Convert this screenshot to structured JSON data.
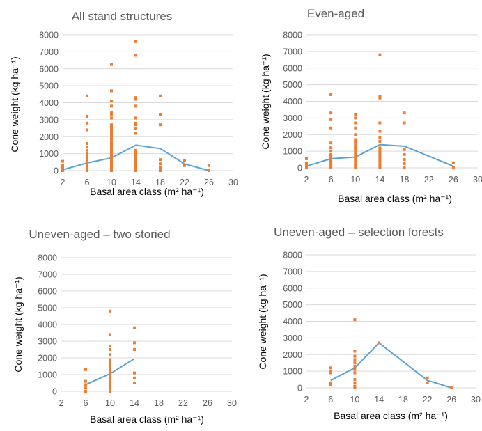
{
  "chart_data": [
    {
      "type": "scatter",
      "title": "All stand structures",
      "xlabel": "Basal area class (m² ha⁻¹)",
      "ylabel": "Cone weight (kg ha⁻¹)",
      "xlim": [
        2,
        30
      ],
      "ylim": [
        0,
        8000
      ],
      "xticks": [
        "2",
        "6",
        "10",
        "14",
        "18",
        "22",
        "26",
        "30"
      ],
      "yticks": [
        "0",
        "1000",
        "2000",
        "3000",
        "4000",
        "5000",
        "6000",
        "7000",
        "8000"
      ],
      "grid": "horizontal",
      "series": [
        {
          "kind": "points",
          "color": "#ed7d31",
          "points": [
            [
              2,
              0
            ],
            [
              2,
              100
            ],
            [
              2,
              200
            ],
            [
              2,
              300
            ],
            [
              2,
              550
            ],
            [
              6,
              0
            ],
            [
              6,
              100
            ],
            [
              6,
              200
            ],
            [
              6,
              300
            ],
            [
              6,
              400
            ],
            [
              6,
              500
            ],
            [
              6,
              600
            ],
            [
              6,
              700
            ],
            [
              6,
              800
            ],
            [
              6,
              900
            ],
            [
              6,
              1000
            ],
            [
              6,
              1200
            ],
            [
              6,
              1400
            ],
            [
              6,
              1600
            ],
            [
              6,
              2400
            ],
            [
              6,
              2800
            ],
            [
              6,
              3200
            ],
            [
              6,
              4400
            ],
            [
              10,
              0
            ],
            [
              10,
              100
            ],
            [
              10,
              200
            ],
            [
              10,
              300
            ],
            [
              10,
              400
            ],
            [
              10,
              500
            ],
            [
              10,
              600
            ],
            [
              10,
              700
            ],
            [
              10,
              800
            ],
            [
              10,
              900
            ],
            [
              10,
              1000
            ],
            [
              10,
              1100
            ],
            [
              10,
              1200
            ],
            [
              10,
              1300
            ],
            [
              10,
              1400
            ],
            [
              10,
              1500
            ],
            [
              10,
              1600
            ],
            [
              10,
              1700
            ],
            [
              10,
              1800
            ],
            [
              10,
              1900
            ],
            [
              10,
              2000
            ],
            [
              10,
              2100
            ],
            [
              10,
              2200
            ],
            [
              10,
              2300
            ],
            [
              10,
              2400
            ],
            [
              10,
              2500
            ],
            [
              10,
              2600
            ],
            [
              10,
              2700
            ],
            [
              10,
              3100
            ],
            [
              10,
              3300
            ],
            [
              10,
              3400
            ],
            [
              10,
              3800
            ],
            [
              10,
              4100
            ],
            [
              10,
              4700
            ],
            [
              10,
              6250
            ],
            [
              14,
              0
            ],
            [
              14,
              100
            ],
            [
              14,
              200
            ],
            [
              14,
              300
            ],
            [
              14,
              400
            ],
            [
              14,
              500
            ],
            [
              14,
              600
            ],
            [
              14,
              700
            ],
            [
              14,
              800
            ],
            [
              14,
              900
            ],
            [
              14,
              1000
            ],
            [
              14,
              1100
            ],
            [
              14,
              1200
            ],
            [
              14,
              2200
            ],
            [
              14,
              2500
            ],
            [
              14,
              2700
            ],
            [
              14,
              2800
            ],
            [
              14,
              3100
            ],
            [
              14,
              3800
            ],
            [
              14,
              4200
            ],
            [
              14,
              4300
            ],
            [
              14,
              6800
            ],
            [
              14,
              7600
            ],
            [
              18,
              0
            ],
            [
              18,
              200
            ],
            [
              18,
              400
            ],
            [
              18,
              650
            ],
            [
              18,
              2700
            ],
            [
              18,
              3300
            ],
            [
              18,
              4400
            ],
            [
              22,
              300
            ],
            [
              22,
              600
            ],
            [
              26,
              0
            ],
            [
              26,
              300
            ]
          ]
        },
        {
          "kind": "line",
          "color": "#5ba3d6",
          "points": [
            [
              2,
              50
            ],
            [
              6,
              450
            ],
            [
              10,
              750
            ],
            [
              14,
              1500
            ],
            [
              18,
              1300
            ],
            [
              22,
              400
            ],
            [
              26,
              0
            ]
          ]
        }
      ]
    },
    {
      "type": "scatter",
      "title": "Even-aged",
      "xlabel": "Basal area class (m² ha⁻¹)",
      "ylabel": "Cone weight (kg ha⁻¹)",
      "xlim": [
        2,
        30
      ],
      "ylim": [
        0,
        8000
      ],
      "xticks": [
        "2",
        "6",
        "10",
        "14",
        "18",
        "22",
        "26",
        "30"
      ],
      "yticks": [
        "0",
        "1000",
        "2000",
        "3000",
        "4000",
        "5000",
        "6000",
        "7000",
        "8000"
      ],
      "grid": "horizontal",
      "series": [
        {
          "kind": "points",
          "color": "#ed7d31",
          "points": [
            [
              2,
              0
            ],
            [
              2,
              150
            ],
            [
              2,
              300
            ],
            [
              2,
              550
            ],
            [
              6,
              0
            ],
            [
              6,
              100
            ],
            [
              6,
              200
            ],
            [
              6,
              300
            ],
            [
              6,
              400
            ],
            [
              6,
              500
            ],
            [
              6,
              600
            ],
            [
              6,
              700
            ],
            [
              6,
              800
            ],
            [
              6,
              1000
            ],
            [
              6,
              1200
            ],
            [
              6,
              1500
            ],
            [
              6,
              2400
            ],
            [
              6,
              2900
            ],
            [
              6,
              3300
            ],
            [
              6,
              4400
            ],
            [
              10,
              0
            ],
            [
              10,
              100
            ],
            [
              10,
              200
            ],
            [
              10,
              300
            ],
            [
              10,
              400
            ],
            [
              10,
              500
            ],
            [
              10,
              600
            ],
            [
              10,
              700
            ],
            [
              10,
              800
            ],
            [
              10,
              900
            ],
            [
              10,
              1000
            ],
            [
              10,
              1100
            ],
            [
              10,
              1200
            ],
            [
              10,
              1300
            ],
            [
              10,
              1400
            ],
            [
              10,
              1500
            ],
            [
              10,
              1600
            ],
            [
              10,
              1700
            ],
            [
              10,
              2000
            ],
            [
              10,
              2400
            ],
            [
              10,
              2700
            ],
            [
              10,
              3000
            ],
            [
              10,
              3200
            ],
            [
              14,
              0
            ],
            [
              14,
              100
            ],
            [
              14,
              200
            ],
            [
              14,
              300
            ],
            [
              14,
              400
            ],
            [
              14,
              500
            ],
            [
              14,
              600
            ],
            [
              14,
              700
            ],
            [
              14,
              800
            ],
            [
              14,
              900
            ],
            [
              14,
              1000
            ],
            [
              14,
              1100
            ],
            [
              14,
              1200
            ],
            [
              14,
              1600
            ],
            [
              14,
              1800
            ],
            [
              14,
              2200
            ],
            [
              14,
              2700
            ],
            [
              14,
              4200
            ],
            [
              14,
              4300
            ],
            [
              14,
              6800
            ],
            [
              18,
              0
            ],
            [
              18,
              250
            ],
            [
              18,
              500
            ],
            [
              18,
              800
            ],
            [
              18,
              1100
            ],
            [
              18,
              2700
            ],
            [
              18,
              3300
            ],
            [
              26,
              0
            ],
            [
              26,
              300
            ]
          ]
        },
        {
          "kind": "line",
          "color": "#5ba3d6",
          "points": [
            [
              2,
              100
            ],
            [
              6,
              550
            ],
            [
              10,
              650
            ],
            [
              14,
              1400
            ],
            [
              18,
              1300
            ],
            [
              26,
              100
            ]
          ]
        }
      ]
    },
    {
      "type": "scatter",
      "title": "Uneven-aged – two storied",
      "xlabel": "Basal area class (m² ha⁻¹)",
      "ylabel": "Cone weight (kg ha⁻¹)",
      "xlim": [
        2,
        30
      ],
      "ylim": [
        0,
        8000
      ],
      "xticks": [
        "2",
        "6",
        "10",
        "14",
        "18",
        "22",
        "26",
        "30"
      ],
      "yticks": [
        "0",
        "1000",
        "2000",
        "3000",
        "4000",
        "5000",
        "6000",
        "7000",
        "8000"
      ],
      "grid": "horizontal",
      "series": [
        {
          "kind": "points",
          "color": "#ed7d31",
          "points": [
            [
              6,
              0
            ],
            [
              6,
              200
            ],
            [
              6,
              400
            ],
            [
              6,
              600
            ],
            [
              6,
              1300
            ],
            [
              10,
              0
            ],
            [
              10,
              100
            ],
            [
              10,
              200
            ],
            [
              10,
              300
            ],
            [
              10,
              400
            ],
            [
              10,
              500
            ],
            [
              10,
              600
            ],
            [
              10,
              700
            ],
            [
              10,
              800
            ],
            [
              10,
              900
            ],
            [
              10,
              1000
            ],
            [
              10,
              1100
            ],
            [
              10,
              1200
            ],
            [
              10,
              1300
            ],
            [
              10,
              1400
            ],
            [
              10,
              1500
            ],
            [
              10,
              1600
            ],
            [
              10,
              1700
            ],
            [
              10,
              1800
            ],
            [
              10,
              1900
            ],
            [
              10,
              2200
            ],
            [
              10,
              2500
            ],
            [
              10,
              2700
            ],
            [
              10,
              3400
            ],
            [
              10,
              4800
            ],
            [
              14,
              500
            ],
            [
              14,
              800
            ],
            [
              14,
              1100
            ],
            [
              14,
              2500
            ],
            [
              14,
              2900
            ],
            [
              14,
              3800
            ]
          ]
        },
        {
          "kind": "line",
          "color": "#5ba3d6",
          "points": [
            [
              6,
              400
            ],
            [
              10,
              1050
            ],
            [
              14,
              1950
            ]
          ]
        }
      ]
    },
    {
      "type": "scatter",
      "title": "Uneven-aged – selection forests",
      "xlabel": "Basal area class (m² ha⁻¹)",
      "ylabel": "Cone weight (kg ha⁻¹)",
      "xlim": [
        2,
        30
      ],
      "ylim": [
        0,
        8000
      ],
      "xticks": [
        "2",
        "6",
        "10",
        "14",
        "18",
        "22",
        "26",
        "30"
      ],
      "yticks": [
        "0",
        "1000",
        "2000",
        "3000",
        "4000",
        "5000",
        "6000",
        "7000",
        "8000"
      ],
      "grid": "horizontal",
      "series": [
        {
          "kind": "points",
          "color": "#ed7d31",
          "points": [
            [
              6,
              200
            ],
            [
              6,
              300
            ],
            [
              6,
              900
            ],
            [
              6,
              1000
            ],
            [
              6,
              1200
            ],
            [
              10,
              0
            ],
            [
              10,
              100
            ],
            [
              10,
              300
            ],
            [
              10,
              500
            ],
            [
              10,
              900
            ],
            [
              10,
              1100
            ],
            [
              10,
              1300
            ],
            [
              10,
              1500
            ],
            [
              10,
              1700
            ],
            [
              10,
              1900
            ],
            [
              10,
              2200
            ],
            [
              10,
              4100
            ],
            [
              14,
              2700
            ],
            [
              22,
              300
            ],
            [
              22,
              600
            ],
            [
              26,
              0
            ]
          ]
        },
        {
          "kind": "line",
          "color": "#5ba3d6",
          "points": [
            [
              6,
              450
            ],
            [
              10,
              1200
            ],
            [
              14,
              2700
            ],
            [
              22,
              450
            ],
            [
              26,
              0
            ]
          ]
        }
      ]
    }
  ]
}
